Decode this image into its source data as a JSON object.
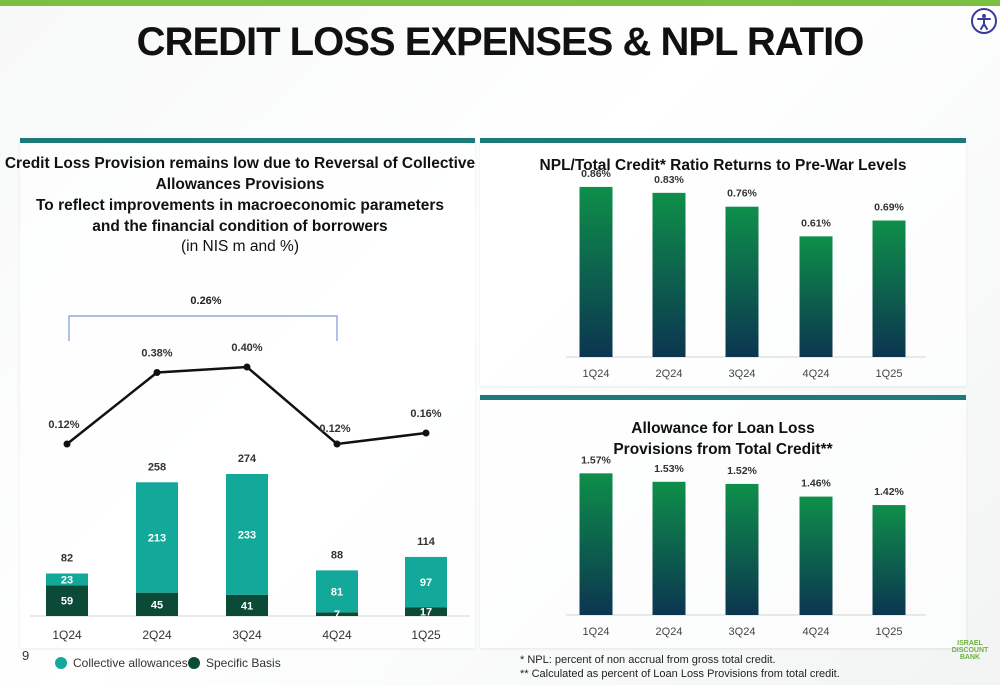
{
  "page": {
    "title": "CREDIT LOSS EXPENSES & NPL RATIO",
    "page_number": "9",
    "legend_collective": "Collective allowances",
    "legend_specific": "Specific Basis",
    "footnote1": "* NPL: percent of non accrual from gross total credit.",
    "footnote2": "** Calculated as percent of Loan Loss Provisions from total credit.",
    "logo_lines": [
      "ISRAEL",
      "DISCOUNT",
      "BANK"
    ],
    "colors": {
      "topbar": "#7bc043",
      "panel_strip": "#1c7a7a",
      "collective": "#12a89a",
      "specific": "#0b4a36",
      "line": "#111111"
    }
  },
  "left_panel": {
    "title_lines": [
      "Credit Loss Provision remains low due to Reversal of Collective",
      "Allowances Provisions",
      "To reflect improvements in macroeconomic parameters",
      "and the financial condition of borrowers"
    ],
    "subtitle": "(in NIS m and %)"
  },
  "npl_panel": {
    "title": "NPL/Total Credit* Ratio Returns to Pre-War Levels"
  },
  "allow_panel": {
    "title_lines": [
      "Allowance for Loan Loss",
      "Provisions from Total Credit**"
    ]
  },
  "chart_data": [
    {
      "type": "bar",
      "stacked": true,
      "categories": [
        "1Q24",
        "2Q24",
        "3Q24",
        "4Q24",
        "1Q25"
      ],
      "series": [
        {
          "name": "Specific Basis",
          "values": [
            59,
            45,
            41,
            7,
            17
          ],
          "color": "#0b4a36"
        },
        {
          "name": "Collective allowances",
          "values": [
            23,
            213,
            233,
            81,
            97
          ],
          "color": "#12a89a"
        }
      ],
      "totals": [
        82,
        258,
        274,
        88,
        114
      ],
      "total_labels": [
        "82",
        "258",
        "274",
        "88",
        "114"
      ],
      "segment_labels": {
        "specific": [
          "59",
          "45",
          "41",
          "7",
          "17"
        ],
        "collective": [
          "23",
          "213",
          "233",
          "81",
          "97"
        ]
      },
      "line_series": {
        "values": [
          0.12,
          0.38,
          0.4,
          0.12,
          0.16
        ],
        "labels": [
          "0.12%",
          "0.38%",
          "0.40%",
          "0.12%",
          "0.16%"
        ],
        "color": "#111111"
      },
      "bracket_annotation": "0.26%",
      "ylim": [
        0,
        300
      ],
      "line_ylim": [
        0,
        0.5
      ]
    },
    {
      "type": "bar",
      "title": "NPL/Total Credit* Ratio Returns to Pre-War Levels",
      "categories": [
        "1Q24",
        "2Q24",
        "3Q24",
        "4Q24",
        "1Q25"
      ],
      "values": [
        0.86,
        0.83,
        0.76,
        0.61,
        0.69
      ],
      "labels": [
        "0.86%",
        "0.83%",
        "0.76%",
        "0.61%",
        "0.69%"
      ],
      "ylim": [
        0,
        0.9
      ]
    },
    {
      "type": "bar",
      "title": "Allowance for Loan Loss Provisions from Total Credit**",
      "categories": [
        "1Q24",
        "2Q24",
        "3Q24",
        "4Q24",
        "1Q25"
      ],
      "values": [
        1.57,
        1.53,
        1.52,
        1.46,
        1.42
      ],
      "labels": [
        "1.57%",
        "1.53%",
        "1.52%",
        "1.46%",
        "1.42%"
      ],
      "ylim": [
        0.9,
        1.6
      ]
    }
  ]
}
